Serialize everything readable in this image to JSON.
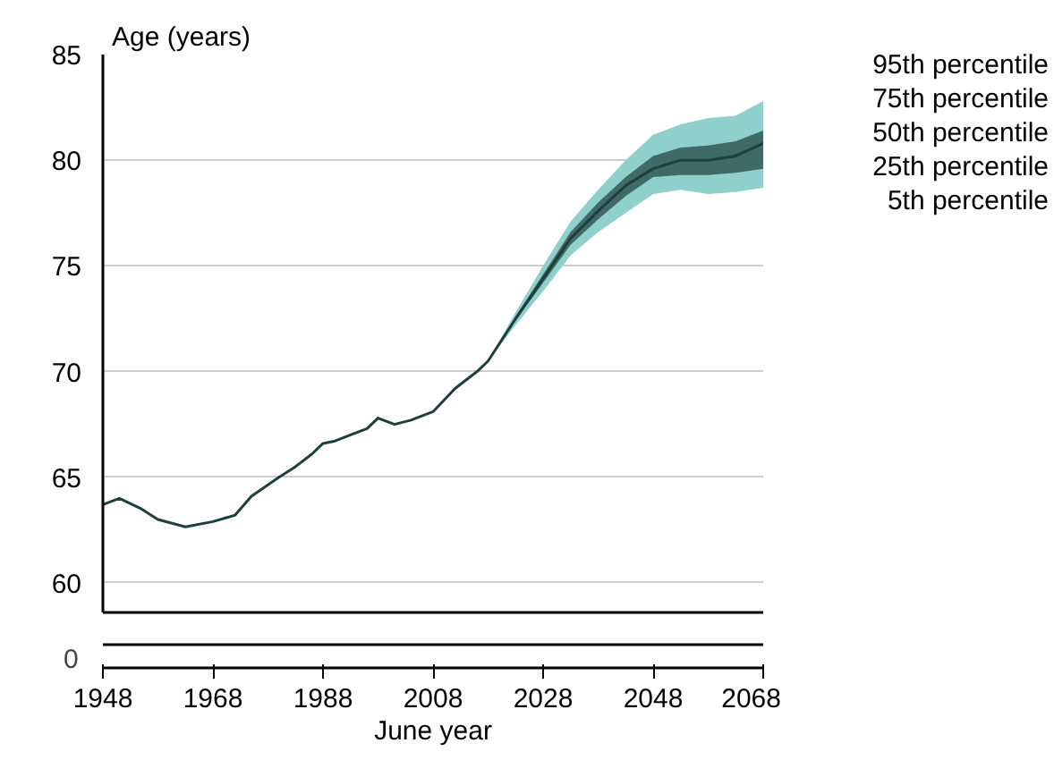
{
  "chart_data": {
    "type": "line",
    "ylabel": "Age (years)",
    "xlabel": "June year",
    "xlim": [
      1948,
      2068
    ],
    "xticks": [
      1948,
      1968,
      1988,
      2008,
      2028,
      2048,
      2068
    ],
    "ylim": [
      58.6,
      85
    ],
    "yticks": [
      60,
      65,
      70,
      75,
      80,
      85
    ],
    "grid": "y",
    "annotations": [
      "95th percentile",
      "75th percentile",
      "50th percentile",
      "25th percentile",
      "5th percentile",
      "0"
    ],
    "series": [
      {
        "color": "#8fcfcc",
        "x": [
          2018,
          2023,
          2028,
          2033,
          2038,
          2043,
          2048,
          2053,
          2058,
          2063,
          2068
        ],
        "values": [
          null,
          null,
          null,
          null,
          null,
          null,
          null,
          null,
          null,
          null,
          null
        ],
        "lower": [
          70.5,
          72.2,
          73.8,
          75.5,
          76.6,
          77.5,
          78.4,
          78.6,
          78.4,
          78.5,
          78.7
        ],
        "upper": [
          70.5,
          72.8,
          75.0,
          77.1,
          78.6,
          80.0,
          81.2,
          81.7,
          82.0,
          82.1,
          82.8
        ]
      },
      {
        "color": "#1d3f3d",
        "x": [
          1948,
          1951,
          1955,
          1958,
          1963,
          1968,
          1972,
          1975,
          1980,
          1983,
          1986,
          1988,
          1990,
          1993,
          1996,
          1998,
          2001,
          2004,
          2008,
          2012,
          2016,
          2018,
          2023,
          2028,
          2033,
          2038,
          2043,
          2048,
          2053,
          2058,
          2063,
          2068
        ],
        "values": [
          63.7,
          64.0,
          63.5,
          63.0,
          62.65,
          62.9,
          63.2,
          64.1,
          65.0,
          65.5,
          66.1,
          66.6,
          66.7,
          67.0,
          67.3,
          67.8,
          67.5,
          67.7,
          68.1,
          69.2,
          70.0,
          70.5,
          72.5,
          74.4,
          76.3,
          77.6,
          78.8,
          79.6,
          80.0,
          80.0,
          80.2,
          80.8
        ],
        "lower": [
          null,
          null,
          null,
          null,
          null,
          null,
          null,
          null,
          null,
          null,
          null,
          null,
          null,
          null,
          null,
          null,
          null,
          null,
          null,
          null,
          null,
          70.5,
          72.4,
          74.2,
          76.0,
          77.2,
          78.3,
          79.2,
          79.3,
          79.3,
          79.4,
          79.6
        ],
        "upper": [
          null,
          null,
          null,
          null,
          null,
          null,
          null,
          null,
          null,
          null,
          null,
          null,
          null,
          null,
          null,
          null,
          null,
          null,
          null,
          null,
          null,
          70.5,
          72.6,
          74.6,
          76.6,
          78.0,
          79.2,
          80.2,
          80.6,
          80.7,
          80.9,
          81.4
        ]
      }
    ]
  }
}
